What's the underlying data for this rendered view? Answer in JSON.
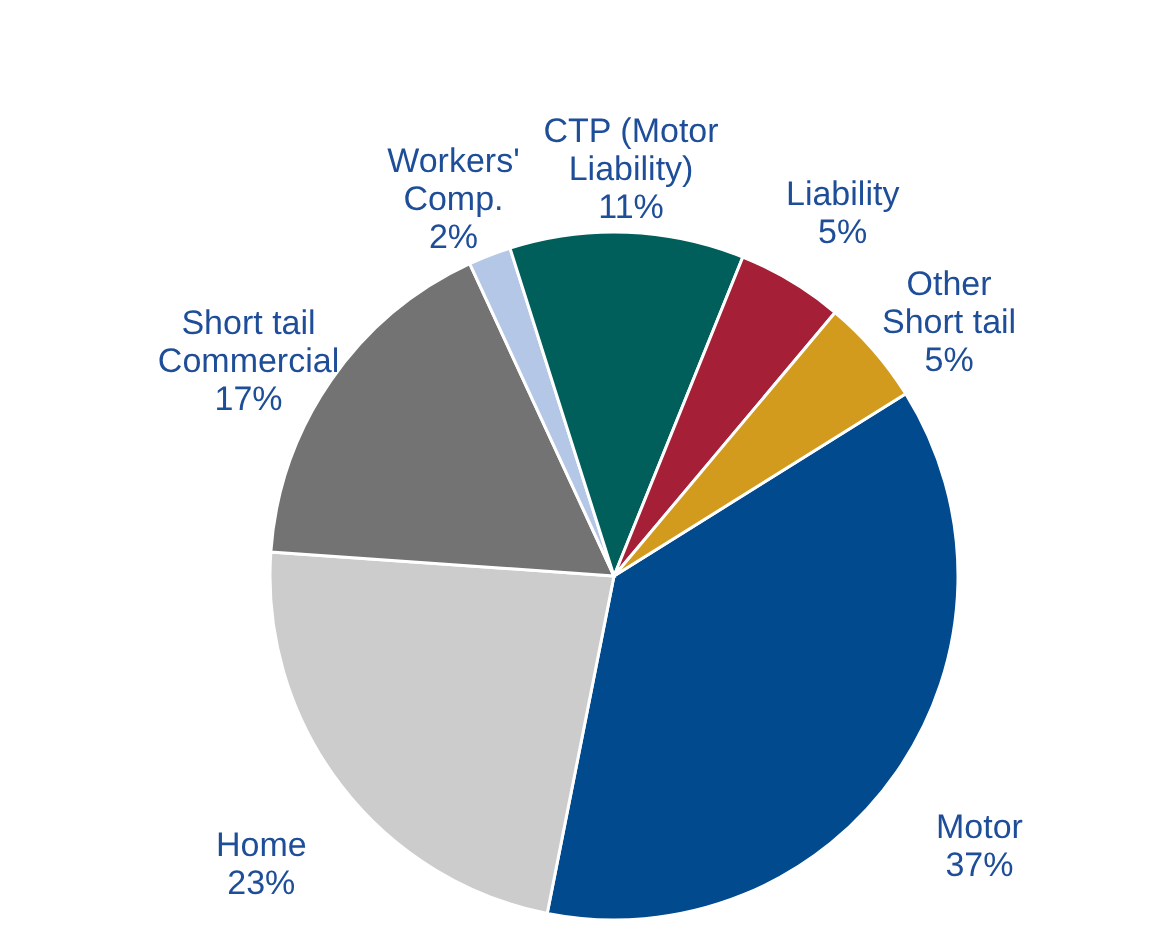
{
  "chart_data": {
    "type": "pie",
    "categories": [
      "Motor",
      "Home",
      "Short tail Commercial",
      "Workers' Comp.",
      "CTP (Motor Liability)",
      "Liability",
      "Other Short tail"
    ],
    "values": [
      37,
      23,
      17,
      2,
      11,
      5,
      5
    ],
    "value_labels": [
      "37%",
      "23%",
      "17%",
      "2%",
      "11%",
      "5%",
      "5%"
    ],
    "colors": [
      "#004a8d",
      "#cccccc",
      "#737373",
      "#b4c7e7",
      "#005f5a",
      "#a51f37",
      "#d39b1e"
    ]
  }
}
